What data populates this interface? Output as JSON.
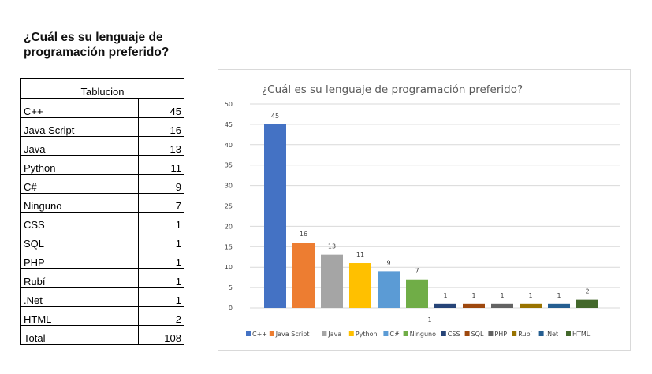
{
  "page": {
    "heading": "¿Cuál es su lenguaje de programación preferido?"
  },
  "table": {
    "header": "Tablucion",
    "rows": [
      {
        "label": "C++",
        "value": "45"
      },
      {
        "label": "Java Script",
        "value": "16"
      },
      {
        "label": "Java",
        "value": "13"
      },
      {
        "label": "Python",
        "value": "11"
      },
      {
        "label": "C#",
        "value": "9"
      },
      {
        "label": "Ninguno",
        "value": "7"
      },
      {
        "label": "CSS",
        "value": "1"
      },
      {
        "label": "SQL",
        "value": "1"
      },
      {
        "label": "PHP",
        "value": "1"
      },
      {
        "label": "Rubí",
        "value": "1"
      },
      {
        "label": ".Net",
        "value": "1"
      },
      {
        "label": "HTML",
        "value": "2"
      }
    ],
    "total_label": "Total",
    "total_value": "108"
  },
  "chart_data": {
    "type": "bar",
    "title": "¿Cuál es su lenguaje de programación preferido?",
    "xlabel": "",
    "ylabel": "",
    "ylim": [
      0,
      50
    ],
    "yticks": [
      0,
      5,
      10,
      15,
      20,
      25,
      30,
      35,
      40,
      45,
      50
    ],
    "grid": true,
    "legend_position": "bottom",
    "stray_label": "1",
    "series": [
      {
        "name": "C++",
        "value": 45,
        "color": "#4472C4"
      },
      {
        "name": "Java Script",
        "value": 16,
        "color": "#ED7D31"
      },
      {
        "name": "Java",
        "value": 13,
        "color": "#A5A5A5"
      },
      {
        "name": "Python",
        "value": 11,
        "color": "#FFC000"
      },
      {
        "name": "C#",
        "value": 9,
        "color": "#5B9BD5"
      },
      {
        "name": "Ninguno",
        "value": 7,
        "color": "#70AD47"
      },
      {
        "name": "CSS",
        "value": 1,
        "color": "#264478"
      },
      {
        "name": "SQL",
        "value": 1,
        "color": "#9E480E"
      },
      {
        "name": "PHP",
        "value": 1,
        "color": "#636363"
      },
      {
        "name": "Rubí",
        "value": 1,
        "color": "#997300"
      },
      {
        "name": ".Net",
        "value": 1,
        "color": "#255E91"
      },
      {
        "name": "HTML",
        "value": 2,
        "color": "#43682B"
      }
    ]
  }
}
